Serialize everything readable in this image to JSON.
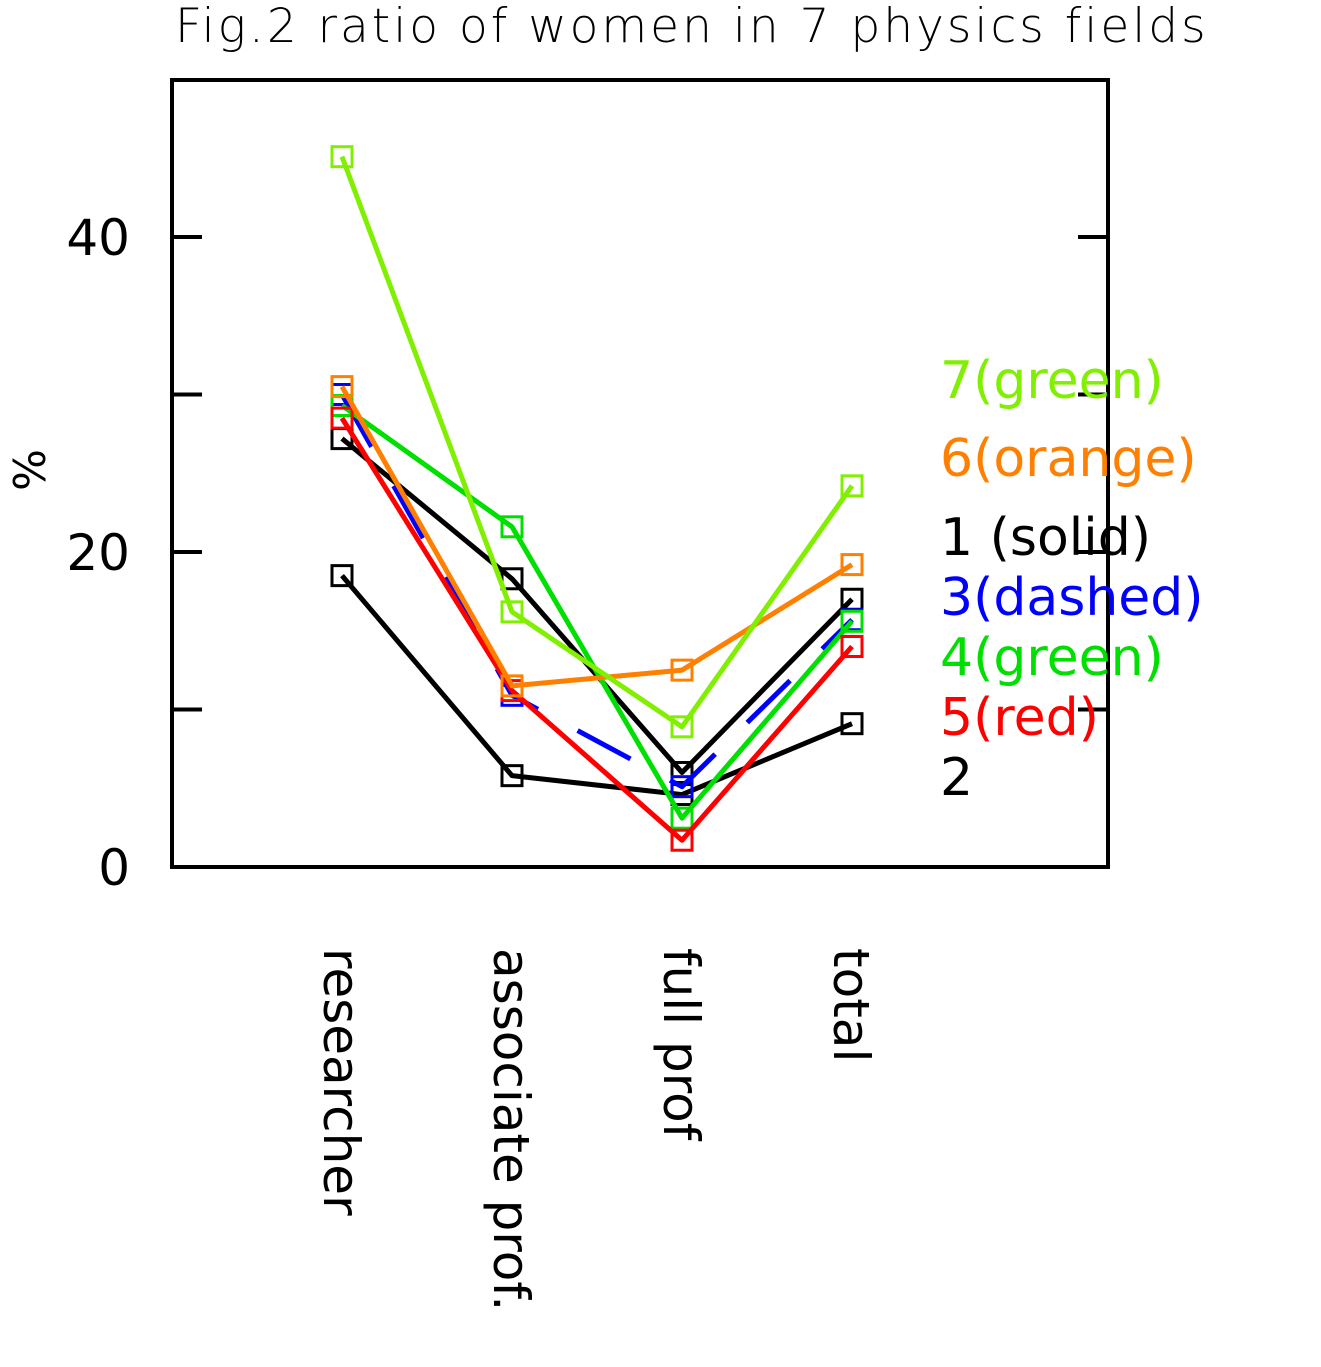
{
  "chart_data": {
    "type": "line",
    "title": "Fig.2 ratio of women in 7 physics fields",
    "xlabel": "",
    "ylabel": "%",
    "ylim": [
      0,
      50
    ],
    "yticks": [
      0,
      10,
      20,
      30,
      40
    ],
    "ytick_labels": [
      "0",
      "",
      "20",
      "",
      "40"
    ],
    "categories": [
      "researcher",
      "associate prof.",
      "full prof",
      "total"
    ],
    "grid": false,
    "marker": "square",
    "series": [
      {
        "name": "1 (solid)",
        "color": "#000000",
        "dashed": false,
        "values": [
          27.2,
          18.3,
          6.0,
          17.0
        ]
      },
      {
        "name": "2",
        "color": "#000000",
        "dashed": false,
        "values": [
          18.5,
          5.8,
          4.6,
          9.1
        ]
      },
      {
        "name": "3(dashed)",
        "color": "#0000ff",
        "dashed": true,
        "values": [
          30.0,
          10.9,
          5.1,
          15.7
        ]
      },
      {
        "name": "4(green)",
        "color": "#00e000",
        "dashed": false,
        "values": [
          29.3,
          21.6,
          3.1,
          15.6
        ]
      },
      {
        "name": "5(red)",
        "color": "#ff0000",
        "dashed": false,
        "values": [
          28.5,
          11.2,
          1.7,
          14.0
        ]
      },
      {
        "name": "6(orange)",
        "color": "#ff8000",
        "dashed": false,
        "values": [
          30.5,
          11.5,
          12.5,
          19.2
        ]
      },
      {
        "name": "7(green)",
        "color": "#80f000",
        "dashed": false,
        "values": [
          45.1,
          16.2,
          8.9,
          24.2
        ]
      }
    ]
  }
}
